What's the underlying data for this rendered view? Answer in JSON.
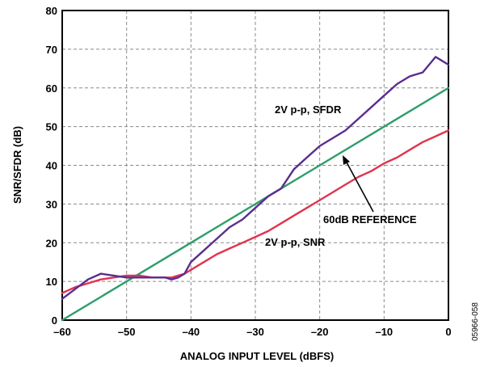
{
  "chart_data": {
    "type": "line",
    "xlabel": "ANALOG INPUT LEVEL (dBFS)",
    "ylabel": "SNR/SFDR (dB)",
    "xlim": [
      -60,
      0
    ],
    "ylim": [
      0,
      80
    ],
    "xticks": [
      -60,
      -50,
      -40,
      -30,
      -20,
      -10,
      0
    ],
    "xtick_labels": [
      "–60",
      "–50",
      "–40",
      "–30",
      "–20",
      "–10",
      "0"
    ],
    "yticks": [
      0,
      10,
      20,
      30,
      40,
      50,
      60,
      70,
      80
    ],
    "ytick_labels": [
      "0",
      "10",
      "20",
      "30",
      "40",
      "50",
      "60",
      "70",
      "80"
    ],
    "grid": true,
    "figure_id": "05966-058",
    "colors": {
      "sfdr": "#5b2d8e",
      "snr": "#e0344f",
      "reference": "#2e9e6b"
    },
    "series": [
      {
        "name": "2V p-p, SFDR",
        "x": [
          -60,
          -58,
          -56,
          -54,
          -52,
          -50,
          -48,
          -46,
          -44,
          -43,
          -42,
          -41,
          -40,
          -38,
          -36,
          -34,
          -32,
          -30,
          -28,
          -26,
          -24,
          -22,
          -20,
          -18,
          -16,
          -14,
          -12,
          -10,
          -8,
          -6,
          -4,
          -3,
          -2,
          -1,
          0
        ],
        "y": [
          5.5,
          8,
          10.5,
          12,
          11.5,
          11,
          11,
          11,
          11,
          10.5,
          11,
          12,
          15,
          18,
          21,
          24,
          26,
          29,
          32,
          34,
          39,
          42,
          45,
          47,
          49,
          52,
          55,
          58,
          61,
          63,
          64,
          66,
          68,
          67,
          66
        ]
      },
      {
        "name": "2V p-p, SNR",
        "x": [
          -60,
          -58,
          -56,
          -54,
          -52,
          -50,
          -48,
          -46,
          -44,
          -43,
          -42,
          -41,
          -40,
          -38,
          -36,
          -34,
          -32,
          -30,
          -28,
          -26,
          -24,
          -22,
          -20,
          -18,
          -16,
          -14,
          -12,
          -10,
          -8,
          -6,
          -4,
          -2,
          0
        ],
        "y": [
          7,
          8.5,
          9.5,
          10.5,
          11,
          11.5,
          11.5,
          11,
          11,
          11,
          11.5,
          12,
          13,
          15,
          17,
          18.5,
          20,
          21.5,
          23,
          25,
          27,
          29,
          31,
          33,
          35,
          37,
          38.5,
          40.5,
          42,
          44,
          46,
          47.5,
          49
        ]
      },
      {
        "name": "60dB REFERENCE",
        "x": [
          -60,
          0
        ],
        "y": [
          0,
          60
        ]
      }
    ],
    "annotations": [
      {
        "text": "2V p-p, SFDR"
      },
      {
        "text": "60dB REFERENCE"
      },
      {
        "text": "2V p-p, SNR"
      }
    ]
  }
}
